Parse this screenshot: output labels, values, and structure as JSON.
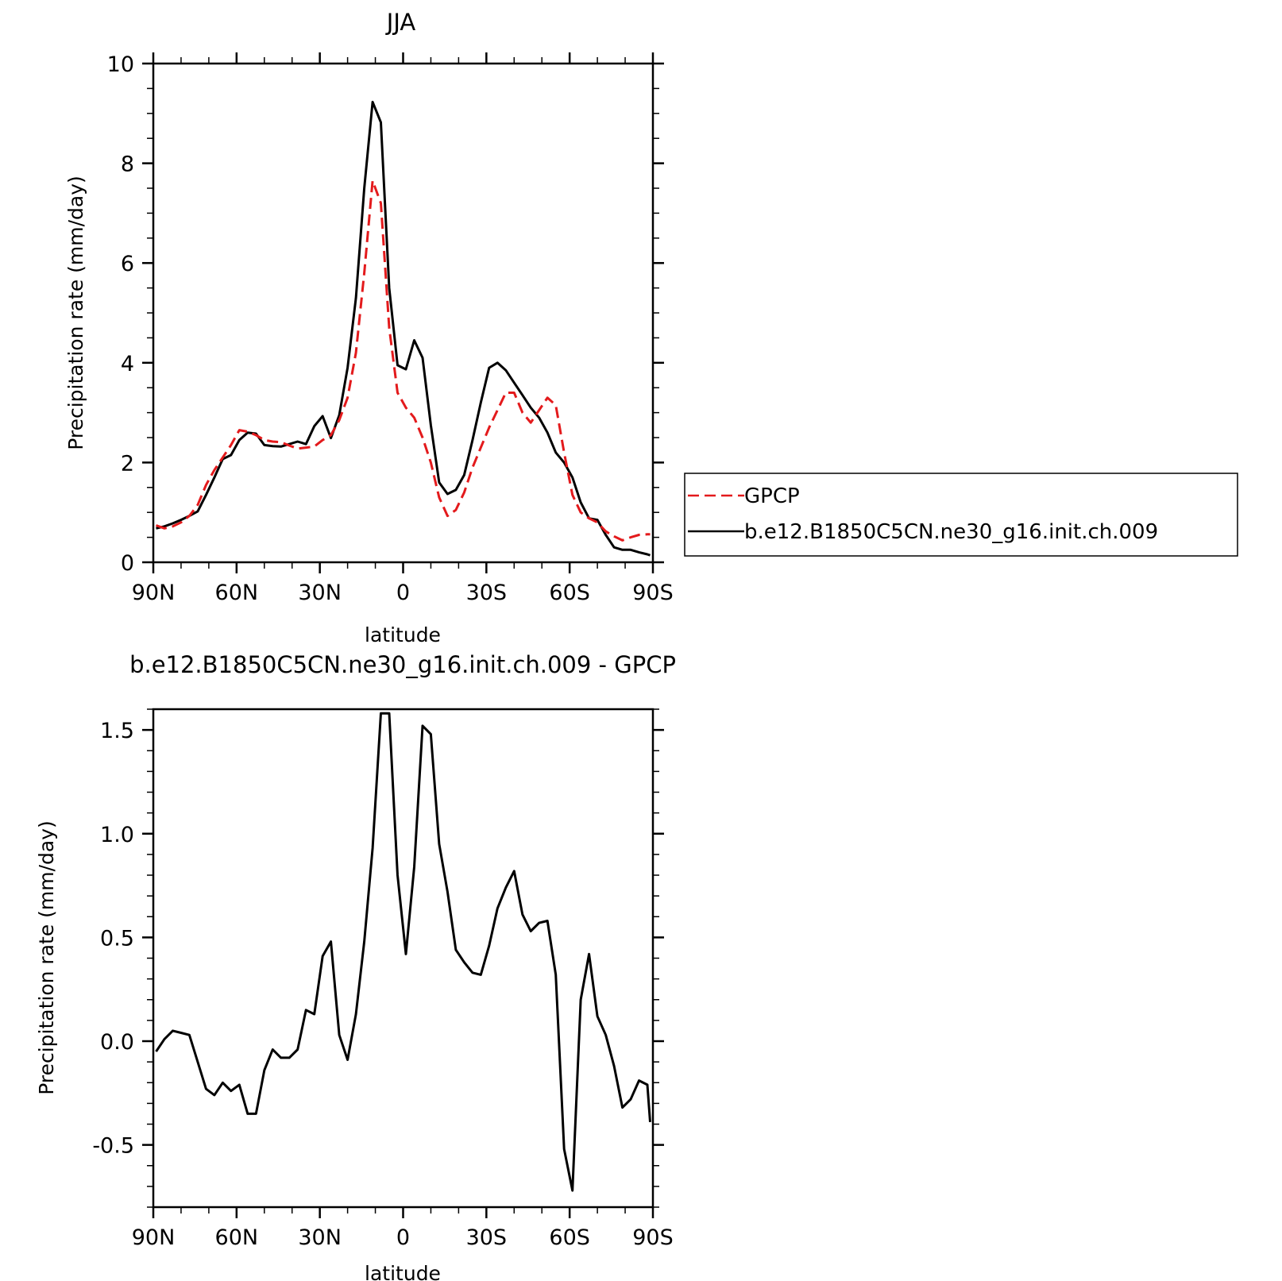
{
  "chart_data": [
    {
      "type": "line",
      "title": "JJA",
      "xlabel": "latitude",
      "ylabel": "Precipitation rate (mm/day)",
      "xlim": [
        -90,
        90
      ],
      "ylim": [
        0,
        10
      ],
      "xticks": [
        -90,
        -60,
        -30,
        0,
        30,
        60,
        90
      ],
      "xtick_labels": [
        "90N",
        "60N",
        "30N",
        "0",
        "30S",
        "60S",
        "90S"
      ],
      "yticks": [
        0,
        2,
        4,
        6,
        8,
        10
      ],
      "ytick_labels": [
        "0",
        "2",
        "4",
        "6",
        "8",
        "10"
      ],
      "legend_position": "right",
      "series": [
        {
          "name": "GPCP",
          "color": "#e31a1c",
          "dash": "dashed",
          "x": [
            -89,
            -86,
            -83,
            -80,
            -77,
            -74,
            -71,
            -68,
            -65,
            -62,
            -59,
            -56,
            -53,
            -50,
            -47,
            -44,
            -41,
            -38,
            -35,
            -32,
            -29,
            -26,
            -23,
            -20,
            -17,
            -14,
            -11,
            -8,
            -5,
            -2,
            1,
            4,
            7,
            10,
            13,
            16,
            19,
            22,
            25,
            28,
            31,
            34,
            37,
            40,
            43,
            46,
            49,
            52,
            55,
            58,
            61,
            64,
            67,
            70,
            73,
            76,
            79,
            82,
            85,
            88,
            89
          ],
          "values": [
            0.74,
            0.68,
            0.72,
            0.8,
            0.93,
            1.15,
            1.55,
            1.85,
            2.1,
            2.35,
            2.65,
            2.62,
            2.55,
            2.45,
            2.42,
            2.41,
            2.34,
            2.28,
            2.3,
            2.32,
            2.45,
            2.55,
            2.85,
            3.3,
            4.2,
            5.8,
            7.65,
            7.2,
            4.7,
            3.4,
            3.1,
            2.9,
            2.5,
            2.0,
            1.3,
            0.93,
            1.05,
            1.4,
            1.9,
            2.3,
            2.7,
            3.05,
            3.4,
            3.4,
            3.0,
            2.8,
            3.05,
            3.3,
            3.15,
            2.2,
            1.35,
            1.0,
            0.88,
            0.8,
            0.62,
            0.52,
            0.44,
            0.5,
            0.55,
            0.56,
            0.56
          ]
        },
        {
          "name": "b.e12.B1850C5CN.ne30_g16.init.ch.009",
          "color": "#000000",
          "dash": "solid",
          "x": [
            -89,
            -86,
            -83,
            -80,
            -77,
            -74,
            -71,
            -68,
            -65,
            -62,
            -59,
            -56,
            -53,
            -50,
            -47,
            -44,
            -41,
            -38,
            -35,
            -32,
            -29,
            -26,
            -23,
            -20,
            -17,
            -14,
            -11,
            -8,
            -5,
            -2,
            1,
            4,
            7,
            10,
            13,
            16,
            19,
            22,
            25,
            28,
            31,
            34,
            37,
            40,
            43,
            46,
            49,
            52,
            55,
            58,
            61,
            64,
            67,
            70,
            73,
            76,
            79,
            82,
            85,
            88,
            89
          ],
          "values": [
            0.68,
            0.72,
            0.78,
            0.85,
            0.93,
            1.02,
            1.35,
            1.7,
            2.07,
            2.15,
            2.45,
            2.6,
            2.58,
            2.35,
            2.33,
            2.32,
            2.37,
            2.42,
            2.37,
            2.73,
            2.93,
            2.49,
            2.95,
            3.9,
            5.3,
            7.5,
            9.23,
            8.82,
            5.5,
            3.95,
            3.87,
            4.45,
            4.1,
            2.75,
            1.6,
            1.37,
            1.45,
            1.75,
            2.45,
            3.2,
            3.9,
            4.0,
            3.85,
            3.6,
            3.35,
            3.1,
            2.9,
            2.6,
            2.2,
            2.0,
            1.7,
            1.2,
            0.88,
            0.85,
            0.55,
            0.3,
            0.25,
            0.25,
            0.2,
            0.16,
            0.14
          ]
        }
      ]
    },
    {
      "type": "line",
      "title": "b.e12.B1850C5CN.ne30_g16.init.ch.009 - GPCP",
      "xlabel": "latitude",
      "ylabel": "Precipitation rate (mm/day)",
      "xlim": [
        -90,
        90
      ],
      "ylim": [
        -0.8,
        1.6
      ],
      "xticks": [
        -90,
        -60,
        -30,
        0,
        30,
        60,
        90
      ],
      "xtick_labels": [
        "90N",
        "60N",
        "30N",
        "0",
        "30S",
        "60S",
        "90S"
      ],
      "yticks": [
        -0.5,
        0.0,
        0.5,
        1.0,
        1.5
      ],
      "ytick_labels": [
        "-0.5",
        "0.0",
        "0.5",
        "1.0",
        "1.5"
      ],
      "series": [
        {
          "color": "#000000",
          "dash": "solid",
          "x": [
            -89,
            -86,
            -83,
            -80,
            -77,
            -74,
            -71,
            -68,
            -65,
            -62,
            -59,
            -56,
            -53,
            -50,
            -47,
            -44,
            -41,
            -38,
            -35,
            -32,
            -29,
            -26,
            -23,
            -20,
            -17,
            -14,
            -11,
            -8,
            -5,
            -2,
            1,
            4,
            7,
            10,
            13,
            16,
            19,
            22,
            25,
            28,
            31,
            34,
            37,
            40,
            43,
            46,
            49,
            52,
            55,
            58,
            61,
            64,
            67,
            70,
            73,
            76,
            79,
            82,
            85,
            88,
            89
          ],
          "values": [
            -0.05,
            0.01,
            0.05,
            0.04,
            0.03,
            -0.1,
            -0.23,
            -0.26,
            -0.2,
            -0.24,
            -0.21,
            -0.35,
            -0.35,
            -0.14,
            -0.04,
            -0.08,
            -0.08,
            -0.04,
            0.15,
            0.13,
            0.41,
            0.48,
            0.03,
            -0.09,
            0.13,
            0.48,
            0.93,
            1.58,
            1.58,
            0.8,
            0.42,
            0.84,
            1.52,
            1.48,
            0.95,
            0.72,
            0.44,
            0.38,
            0.33,
            0.32,
            0.46,
            0.64,
            0.74,
            0.82,
            0.61,
            0.53,
            0.57,
            0.58,
            0.32,
            -0.52,
            -0.72,
            0.2,
            0.42,
            0.12,
            0.03,
            -0.12,
            -0.32,
            -0.28,
            -0.19,
            -0.21,
            -0.39
          ]
        }
      ]
    }
  ]
}
